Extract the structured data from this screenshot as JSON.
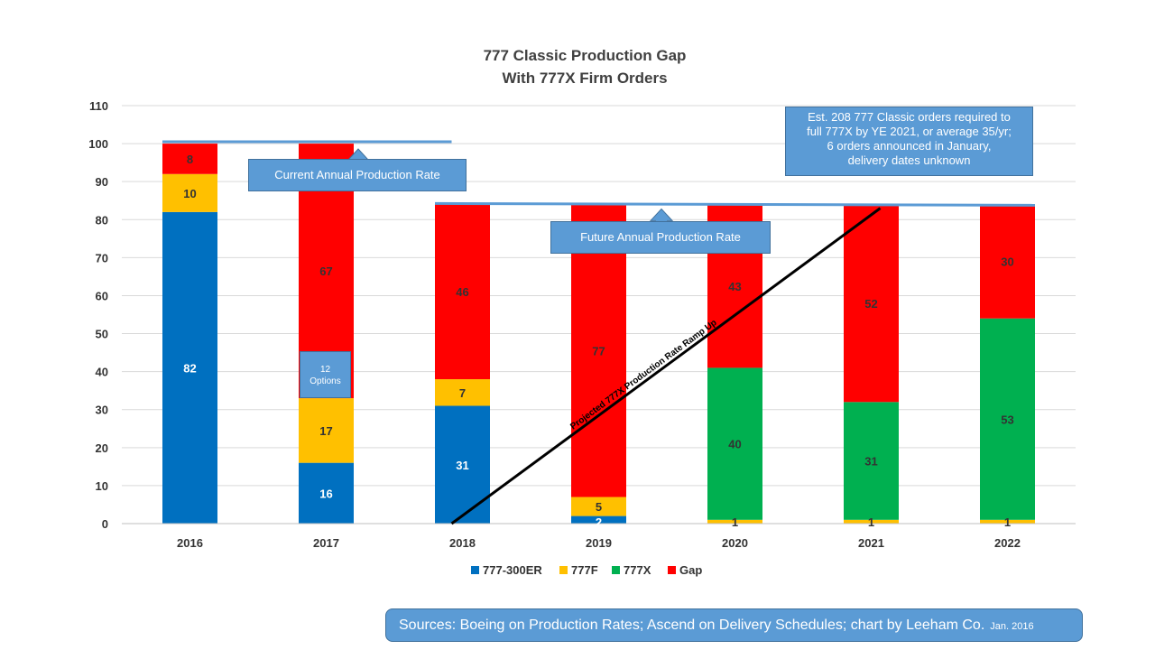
{
  "chart_data": {
    "type": "bar",
    "stacked": true,
    "title_lines": [
      "777 Classic Production  Gap",
      "With 777X Firm Orders"
    ],
    "categories": [
      "2016",
      "2017",
      "2018",
      "2019",
      "2020",
      "2021",
      "2022"
    ],
    "ylim": [
      0,
      110
    ],
    "yticks": [
      0,
      10,
      20,
      30,
      40,
      50,
      60,
      70,
      80,
      90,
      100,
      110
    ],
    "grid": true,
    "legend_position": "bottom",
    "series": [
      {
        "name": "777-300ER",
        "color": "#0070c0",
        "values": [
          82,
          16,
          31,
          2,
          0,
          0,
          0
        ],
        "labels": [
          "82",
          "16",
          "31",
          "2",
          "",
          "",
          ""
        ],
        "label_color": "#ffffff"
      },
      {
        "name": "777F",
        "color": "#ffc000",
        "values": [
          10,
          17,
          7,
          5,
          1,
          1,
          1
        ],
        "labels": [
          "10",
          "17",
          "7",
          "5",
          "1",
          "1",
          "1"
        ],
        "label_color": "#333333"
      },
      {
        "name": "777X",
        "color": "#00b050",
        "values": [
          0,
          0,
          0,
          0,
          40,
          31,
          53
        ],
        "labels": [
          "",
          "",
          "",
          "",
          "40",
          "31",
          "53"
        ],
        "label_color": "#333333"
      },
      {
        "name": "Gap",
        "color": "#ff0000",
        "values": [
          8,
          67,
          46,
          77,
          43,
          52,
          30
        ],
        "labels": [
          "8",
          "67",
          "46",
          "77",
          "43",
          "52",
          "30"
        ],
        "label_color": "#333333"
      }
    ],
    "annotations": {
      "current_rate": {
        "label": "Current Annual Production Rate",
        "value": 100.5,
        "from_category": 0,
        "to_category": 2
      },
      "future_rate": {
        "label": "Future Annual Production Rate",
        "value": 84,
        "from_category": 2,
        "to_category": 6
      },
      "ramp_line": {
        "label": "Projected 777X Production Rate Ramp Up",
        "from": [
          "2018",
          0
        ],
        "to": [
          "2021",
          83
        ]
      },
      "options_box": {
        "label_lines": [
          "12",
          "Options"
        ]
      },
      "note_lines": [
        "Est. 208 777 Classic orders required to",
        "full 777X by YE 2021, or average 35/yr;",
        "6 orders announced  in January,",
        "delivery dates unknown"
      ]
    }
  },
  "footer": {
    "sources": "Sources: Boeing on Production Rates; Ascend on Delivery Schedules; chart by Leeham Co.",
    "date": "Jan. 2016"
  }
}
